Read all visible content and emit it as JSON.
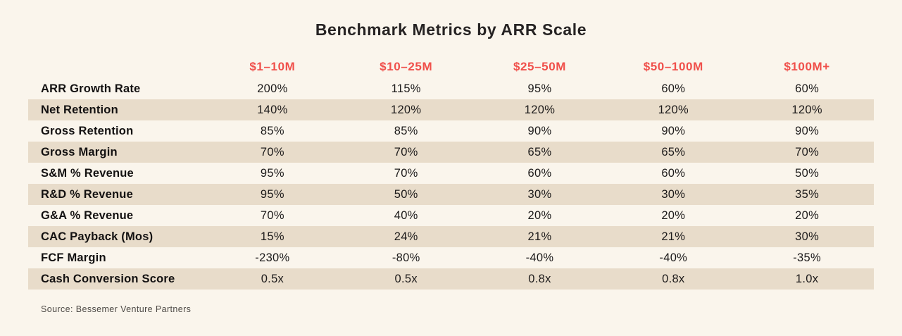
{
  "title": "Benchmark Metrics by ARR Scale",
  "source": "Source: Bessemer Venture Partners",
  "colors": {
    "background": "#faf5ec",
    "header_text": "#f0504b",
    "row_shade": "#e8dcca",
    "title_text": "#262323"
  },
  "chart_data": {
    "type": "table",
    "title": "Benchmark Metrics by ARR Scale",
    "columns": [
      "$1–10M",
      "$10–25M",
      "$25–50M",
      "$50–100M",
      "$100M+"
    ],
    "rows": [
      {
        "label": "ARR Growth Rate",
        "values": [
          "200%",
          "115%",
          "95%",
          "60%",
          "60%"
        ]
      },
      {
        "label": "Net Retention",
        "values": [
          "140%",
          "120%",
          "120%",
          "120%",
          "120%"
        ]
      },
      {
        "label": "Gross Retention",
        "values": [
          "85%",
          "85%",
          "90%",
          "90%",
          "90%"
        ]
      },
      {
        "label": "Gross Margin",
        "values": [
          "70%",
          "70%",
          "65%",
          "65%",
          "70%"
        ]
      },
      {
        "label": "S&M % Revenue",
        "values": [
          "95%",
          "70%",
          "60%",
          "60%",
          "50%"
        ]
      },
      {
        "label": "R&D % Revenue",
        "values": [
          "95%",
          "50%",
          "30%",
          "30%",
          "35%"
        ]
      },
      {
        "label": "G&A % Revenue",
        "values": [
          "70%",
          "40%",
          "20%",
          "20%",
          "20%"
        ]
      },
      {
        "label": "CAC Payback (Mos)",
        "values": [
          "15%",
          "24%",
          "21%",
          "21%",
          "30%"
        ]
      },
      {
        "label": "FCF Margin",
        "values": [
          "-230%",
          "-80%",
          "-40%",
          "-40%",
          "-35%"
        ]
      },
      {
        "label": "Cash Conversion Score",
        "values": [
          "0.5x",
          "0.5x",
          "0.8x",
          "0.8x",
          "1.0x"
        ]
      }
    ],
    "shaded_row_indices": [
      1,
      3,
      5,
      7,
      9
    ],
    "legend": null,
    "grid": false
  }
}
